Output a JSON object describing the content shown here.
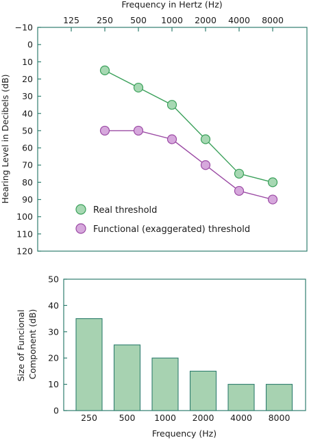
{
  "chart_data": [
    {
      "type": "line",
      "xlabel": "Frequency in Hertz (Hz)",
      "ylabel": "Hearing Level in Decibels (dB)",
      "categories": [
        "125",
        "250",
        "500",
        "1000",
        "2000",
        "4000",
        "8000"
      ],
      "ylim": [
        -10,
        120
      ],
      "y_inverted": true,
      "yticks": [
        "−10",
        "0",
        "10",
        "20",
        "30",
        "40",
        "50",
        "60",
        "70",
        "80",
        "90",
        "100",
        "110",
        "120"
      ],
      "ytick_values": [
        -10,
        0,
        10,
        20,
        30,
        40,
        50,
        60,
        70,
        80,
        90,
        100,
        110,
        120
      ],
      "grid": false,
      "legend_position": "bottom-left",
      "series": [
        {
          "name": "Real threshold",
          "color": "#3aa05a",
          "fill": "#a7d8b3",
          "x": [
            "250",
            "500",
            "1000",
            "2000",
            "4000",
            "8000"
          ],
          "values": [
            15,
            25,
            35,
            55,
            75,
            80
          ]
        },
        {
          "name": "Functional (exaggerated) threshold",
          "color": "#9b4aa4",
          "fill": "#d6a8dc",
          "x": [
            "250",
            "500",
            "1000",
            "2000",
            "4000",
            "8000"
          ],
          "values": [
            50,
            50,
            55,
            70,
            85,
            90
          ]
        }
      ]
    },
    {
      "type": "bar",
      "xlabel": "Frequency (Hz)",
      "ylabel": "Size of Funcional Component (dB)",
      "ylabel_lines": [
        "Size of Funcional",
        "Component (dB)"
      ],
      "categories": [
        "250",
        "500",
        "1000",
        "2000",
        "4000",
        "8000"
      ],
      "values": [
        35,
        25,
        20,
        15,
        10,
        10
      ],
      "ylim": [
        0,
        50
      ],
      "yticks": [
        "0",
        "10",
        "20",
        "30",
        "40",
        "50"
      ],
      "ytick_values": [
        0,
        10,
        20,
        30,
        40,
        50
      ],
      "grid": false,
      "bar_fill": "#a7d2b1",
      "bar_stroke": "#2e7d6e"
    }
  ]
}
